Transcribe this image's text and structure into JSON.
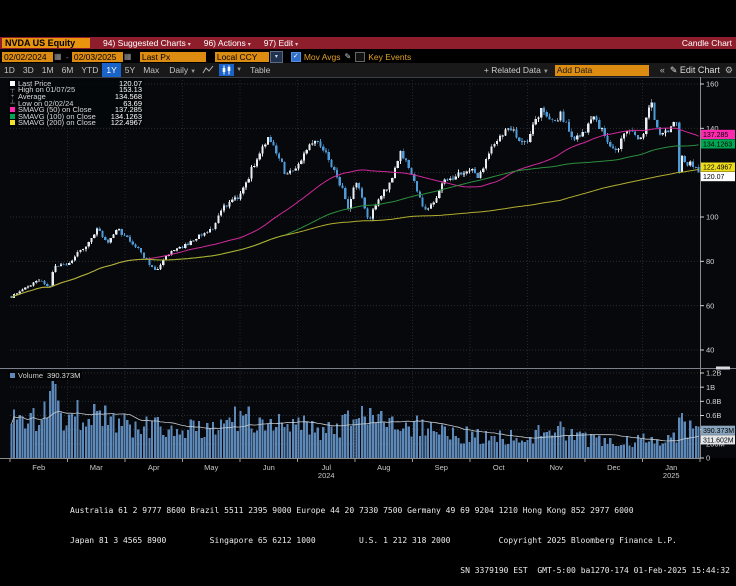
{
  "titlebar": {
    "security": "NVDA US Equity",
    "menus": [
      {
        "label": "94) Suggested Charts"
      },
      {
        "label": "96) Actions"
      },
      {
        "label": "97) Edit"
      }
    ],
    "right": "Candle Chart"
  },
  "toolbar": {
    "date_from": "02/02/2024",
    "date_to": "02/03/2025",
    "px_field": "Last Px",
    "ccy_field": "Local CCY",
    "mov_avgs_label": "Mov Avgs",
    "key_events_label": "Key Events",
    "mov_avgs_checked": "true",
    "key_events_checked": "false"
  },
  "periodbar": {
    "tabs": [
      "1D",
      "3D",
      "1M",
      "6M",
      "YTD",
      "1Y",
      "5Y",
      "Max"
    ],
    "selected_tab": "1Y",
    "frequency": "Daily",
    "table_label": "Table",
    "related_data_label": "+ Related Data",
    "add_data_value": "Add Data",
    "collapse_label": "«",
    "edit_chart_label": "Edit Chart"
  },
  "legend": {
    "rows": [
      {
        "swatch": "square",
        "color": "#ffffff",
        "label": "Last Price",
        "value": "120.07"
      },
      {
        "swatch": "glyph",
        "glyph": "┬",
        "label": "High on 01/07/25",
        "value": "153.13"
      },
      {
        "swatch": "glyph",
        "glyph": "+",
        "label": "Average",
        "value": "134.568"
      },
      {
        "swatch": "glyph",
        "glyph": "┴",
        "label": "Low on 02/02/24",
        "value": "63.69"
      },
      {
        "swatch": "square",
        "color": "#ff29b0",
        "label": "SMAVG (50) on Close",
        "value": "137.285"
      },
      {
        "swatch": "square",
        "color": "#00a651",
        "label": "SMAVG (100) on Close",
        "value": "134.1263"
      },
      {
        "swatch": "square",
        "color": "#f5e22a",
        "label": "SMAVG (200) on Close",
        "value": "122.4967"
      }
    ]
  },
  "volume_legend": {
    "label": "Volume",
    "value": "390.373M"
  },
  "price_tags": [
    {
      "value": "137.285",
      "color": "#ff29b0"
    },
    {
      "value": "134.1263",
      "color": "#00a651"
    },
    {
      "value": "122.4967",
      "color": "#eedc1c"
    },
    {
      "value": "120.07",
      "color": "#ffffff"
    }
  ],
  "volume_tags": [
    {
      "value": "390.373M",
      "color": "#8aa6bf"
    },
    {
      "value": "311.602M",
      "color": "#e4e7ea"
    }
  ],
  "status_bar": {
    "line1": "Australia 61 2 9777 8600 Brazil 5511 2395 9000 Europe 44 20 7330 7500 Germany 49 69 9204 1210 Hong Kong 852 2977 6000",
    "line2": "Japan 81 3 4565 8900         Singapore 65 6212 1000         U.S. 1 212 318 2000          Copyright 2025 Bloomberg Finance L.P.",
    "line3": "SN 3379190 EST  GMT-5:00 ba1270-174 01-Feb-2025 15:44:32"
  },
  "chart_data": {
    "type": "candlestick",
    "symbol": "NVDA US Equity",
    "period": "02/02/2024 - 02/03/2025",
    "frequency": "Daily",
    "num_bars": 250,
    "price_axis": {
      "min": 40,
      "max": 160,
      "ticks": [
        {
          "p": 160,
          "label": "160"
        },
        {
          "p": 140,
          "label": "140"
        },
        {
          "p": 120,
          "label": ""
        },
        {
          "p": 100,
          "label": "100"
        },
        {
          "p": 80,
          "label": "80"
        },
        {
          "p": 60,
          "label": "60"
        },
        {
          "p": 40,
          "label": "40"
        }
      ]
    },
    "volume_axis": {
      "min": 0,
      "max": 1200,
      "ticks": [
        {
          "v": 0,
          "label": "0"
        },
        {
          "v": 200,
          "label": "200M"
        },
        {
          "v": 400,
          "label": ""
        },
        {
          "v": 600,
          "label": "0.6B"
        },
        {
          "v": 800,
          "label": "0.8B"
        },
        {
          "v": 1000,
          "label": "1B"
        },
        {
          "v": 1200,
          "label": "1.2B"
        }
      ]
    },
    "months": [
      "Feb",
      "Mar",
      "Apr",
      "May",
      "Jun",
      "Jul",
      "Aug",
      "Sep",
      "Oct",
      "Nov",
      "Dec",
      "Jan"
    ],
    "years": [
      {
        "label": "2024",
        "month_index": 5
      },
      {
        "label": "2025",
        "month_index": 11
      }
    ],
    "key_values": {
      "last_price": 120.07,
      "high": 153.13,
      "high_date": "01/07/25",
      "average": 134.568,
      "low": 63.69,
      "low_date": "02/02/24",
      "smavg50": 137.285,
      "smavg100": 134.1263,
      "smavg200": 122.4967,
      "volume": "390.373M",
      "volume_avg": "311.602M"
    },
    "sma": [
      {
        "window": 50,
        "color": "#d12a9c"
      },
      {
        "window": 100,
        "color": "#2d8f3f"
      },
      {
        "window": 200,
        "color": "#b3ae2f"
      }
    ],
    "colors": {
      "candle_up": "#e8eef4",
      "candle_down": "#4f9bd8",
      "volume_bar": "#5d89b8",
      "volume_ma": "#c6ccd2"
    },
    "price_anchors": [
      [
        0.0,
        64.0
      ],
      [
        0.02,
        68.0
      ],
      [
        0.042,
        72.1
      ],
      [
        0.055,
        67.4
      ],
      [
        0.062,
        78.5
      ],
      [
        0.083,
        79.1
      ],
      [
        0.11,
        88.0
      ],
      [
        0.125,
        95.0
      ],
      [
        0.14,
        88.8
      ],
      [
        0.155,
        94.2
      ],
      [
        0.167,
        90.3
      ],
      [
        0.18,
        87.0
      ],
      [
        0.21,
        75.6
      ],
      [
        0.23,
        84.0
      ],
      [
        0.25,
        86.4
      ],
      [
        0.27,
        90.6
      ],
      [
        0.292,
        94.9
      ],
      [
        0.31,
        104.8
      ],
      [
        0.333,
        109.6
      ],
      [
        0.35,
        121.8
      ],
      [
        0.375,
        135.6
      ],
      [
        0.39,
        126.6
      ],
      [
        0.4,
        118.1
      ],
      [
        0.417,
        123.5
      ],
      [
        0.44,
        134.9
      ],
      [
        0.46,
        127.4
      ],
      [
        0.48,
        114.0
      ],
      [
        0.49,
        103.7
      ],
      [
        0.5,
        117.0
      ],
      [
        0.52,
        99.0
      ],
      [
        0.535,
        109.0
      ],
      [
        0.552,
        116.0
      ],
      [
        0.565,
        129.0
      ],
      [
        0.575,
        125.6
      ],
      [
        0.583,
        119.4
      ],
      [
        0.6,
        102.8
      ],
      [
        0.615,
        108.0
      ],
      [
        0.63,
        116.0
      ],
      [
        0.65,
        119.1
      ],
      [
        0.667,
        121.4
      ],
      [
        0.68,
        118.0
      ],
      [
        0.7,
        132.0
      ],
      [
        0.715,
        138.0
      ],
      [
        0.725,
        141.0
      ],
      [
        0.735,
        136.0
      ],
      [
        0.75,
        132.8
      ],
      [
        0.765,
        145.6
      ],
      [
        0.775,
        148.9
      ],
      [
        0.785,
        141.8
      ],
      [
        0.8,
        146.7
      ],
      [
        0.815,
        135.3
      ],
      [
        0.825,
        136.0
      ],
      [
        0.833,
        138.3
      ],
      [
        0.845,
        145.1
      ],
      [
        0.86,
        139.3
      ],
      [
        0.88,
        128.9
      ],
      [
        0.895,
        139.9
      ],
      [
        0.905,
        137.0
      ],
      [
        0.917,
        134.3
      ],
      [
        0.928,
        149.4
      ],
      [
        0.932,
        150.0
      ],
      [
        0.938,
        140.1
      ],
      [
        0.95,
        137.2
      ],
      [
        0.96,
        140.0
      ],
      [
        0.968,
        142.6
      ],
      [
        0.972,
        118.4
      ],
      [
        0.976,
        129.0
      ],
      [
        0.982,
        123.7
      ],
      [
        0.99,
        124.7
      ],
      [
        1.0,
        120.07
      ]
    ],
    "volume_anchors": [
      [
        0.0,
        620
      ],
      [
        0.03,
        500
      ],
      [
        0.05,
        680
      ],
      [
        0.06,
        900
      ],
      [
        0.08,
        560
      ],
      [
        0.1,
        600
      ],
      [
        0.125,
        640
      ],
      [
        0.15,
        500
      ],
      [
        0.17,
        470
      ],
      [
        0.2,
        430
      ],
      [
        0.21,
        500
      ],
      [
        0.23,
        420
      ],
      [
        0.25,
        400
      ],
      [
        0.29,
        420
      ],
      [
        0.3,
        560
      ],
      [
        0.31,
        700
      ],
      [
        0.33,
        520
      ],
      [
        0.36,
        580
      ],
      [
        0.375,
        620
      ],
      [
        0.4,
        480
      ],
      [
        0.42,
        440
      ],
      [
        0.44,
        400
      ],
      [
        0.47,
        360
      ],
      [
        0.49,
        480
      ],
      [
        0.5,
        560
      ],
      [
        0.52,
        680
      ],
      [
        0.55,
        420
      ],
      [
        0.57,
        380
      ],
      [
        0.6,
        440
      ],
      [
        0.63,
        340
      ],
      [
        0.65,
        330
      ],
      [
        0.68,
        300
      ],
      [
        0.7,
        310
      ],
      [
        0.72,
        290
      ],
      [
        0.75,
        280
      ],
      [
        0.765,
        350
      ],
      [
        0.78,
        330
      ],
      [
        0.8,
        400
      ],
      [
        0.82,
        300
      ],
      [
        0.83,
        260
      ],
      [
        0.85,
        240
      ],
      [
        0.86,
        230
      ],
      [
        0.88,
        270
      ],
      [
        0.9,
        240
      ],
      [
        0.917,
        230
      ],
      [
        0.928,
        320
      ],
      [
        0.94,
        270
      ],
      [
        0.955,
        250
      ],
      [
        0.968,
        300
      ],
      [
        0.972,
        840
      ],
      [
        0.976,
        560
      ],
      [
        0.982,
        420
      ],
      [
        0.99,
        380
      ],
      [
        1.0,
        390
      ]
    ]
  }
}
